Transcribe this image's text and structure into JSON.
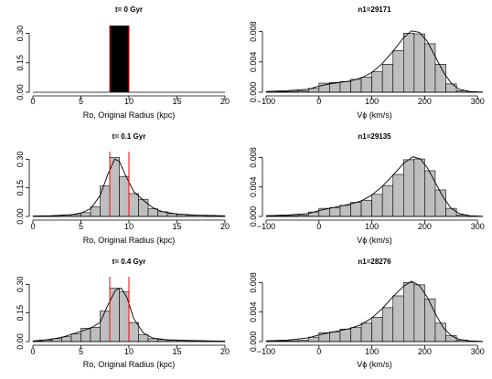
{
  "chart_data": [
    {
      "id": "r0-left",
      "type": "histogram",
      "title": "t= 0 Gyr",
      "xlabel": "Ro, Original Radius (kpc)",
      "ylabel": "",
      "xlim": [
        0,
        20
      ],
      "ylim": [
        0,
        0.34
      ],
      "xticks": [
        0,
        5,
        10,
        15,
        20
      ],
      "yticks": [
        0,
        0.15,
        0.3
      ],
      "xtick_labels": [
        "0",
        "5",
        "10",
        "15",
        "20"
      ],
      "ytick_labels": [
        "0.00",
        "0.15",
        "0.30"
      ],
      "bars": [],
      "solid_block": {
        "x0": 8.0,
        "x1": 10.0,
        "top": 0.34
      },
      "vlines": [
        8,
        10
      ],
      "curve": [],
      "colors": {
        "bar": "#bebebe",
        "vline": "#ff0000",
        "block": "#000000"
      }
    },
    {
      "id": "r0-right",
      "type": "histogram",
      "title": "n1=29171",
      "xlabel": "Vϕ (km/s)",
      "ylabel": "",
      "xlim": [
        -100,
        310
      ],
      "ylim": [
        0,
        0.0088
      ],
      "xticks": [
        -100,
        0,
        100,
        200,
        300
      ],
      "yticks": [
        0,
        0.004,
        0.008
      ],
      "xtick_labels": [
        "−100",
        "0",
        "100",
        "200",
        "300"
      ],
      "ytick_labels": [
        "0.000",
        "0.004",
        "0.008"
      ],
      "bars": [
        {
          "x0": -100,
          "x1": -80,
          "y": 5e-05
        },
        {
          "x0": -80,
          "x1": -60,
          "y": 8e-05
        },
        {
          "x0": -60,
          "x1": -40,
          "y": 0.00012
        },
        {
          "x0": -40,
          "x1": -20,
          "y": 0.0002
        },
        {
          "x0": -20,
          "x1": 0,
          "y": 0.0005
        },
        {
          "x0": 0,
          "x1": 20,
          "y": 0.0012
        },
        {
          "x0": 20,
          "x1": 40,
          "y": 0.0013
        },
        {
          "x0": 40,
          "x1": 60,
          "y": 0.0014
        },
        {
          "x0": 60,
          "x1": 80,
          "y": 0.0017
        },
        {
          "x0": 80,
          "x1": 100,
          "y": 0.002
        },
        {
          "x0": 100,
          "x1": 120,
          "y": 0.0027
        },
        {
          "x0": 120,
          "x1": 140,
          "y": 0.0037
        },
        {
          "x0": 140,
          "x1": 160,
          "y": 0.0055
        },
        {
          "x0": 160,
          "x1": 180,
          "y": 0.0078
        },
        {
          "x0": 180,
          "x1": 200,
          "y": 0.0077
        },
        {
          "x0": 200,
          "x1": 220,
          "y": 0.0064
        },
        {
          "x0": 220,
          "x1": 240,
          "y": 0.0037
        },
        {
          "x0": 240,
          "x1": 260,
          "y": 0.0011
        },
        {
          "x0": 260,
          "x1": 280,
          "y": 0.0002
        },
        {
          "x0": 280,
          "x1": 300,
          "y": 5e-05
        }
      ],
      "vlines": [],
      "curve": [
        [
          -100,
          0.0001
        ],
        [
          -60,
          0.0002
        ],
        [
          -20,
          0.0004
        ],
        [
          0,
          0.0008
        ],
        [
          20,
          0.0011
        ],
        [
          40,
          0.0013
        ],
        [
          60,
          0.0015
        ],
        [
          80,
          0.0019
        ],
        [
          100,
          0.0026
        ],
        [
          120,
          0.0038
        ],
        [
          140,
          0.0054
        ],
        [
          160,
          0.0072
        ],
        [
          175,
          0.0081
        ],
        [
          190,
          0.0079
        ],
        [
          205,
          0.0067
        ],
        [
          220,
          0.0047
        ],
        [
          235,
          0.0027
        ],
        [
          250,
          0.0012
        ],
        [
          265,
          0.0004
        ],
        [
          285,
          0.0001
        ],
        [
          310,
          2e-05
        ]
      ],
      "colors": {
        "bar": "#bebebe",
        "vline": "#ff0000"
      }
    },
    {
      "id": "r1-left",
      "type": "histogram",
      "title": "t= 0.1 Gyr",
      "xlabel": "Ro, Original Radius (kpc)",
      "ylabel": "",
      "xlim": [
        0,
        20
      ],
      "ylim": [
        0,
        0.34
      ],
      "xticks": [
        0,
        5,
        10,
        15,
        20
      ],
      "yticks": [
        0,
        0.15,
        0.3
      ],
      "xtick_labels": [
        "0",
        "5",
        "10",
        "15",
        "20"
      ],
      "ytick_labels": [
        "0.00",
        "0.15",
        "0.30"
      ],
      "bars": [
        {
          "x0": 0,
          "x1": 1,
          "y": 0.002
        },
        {
          "x0": 1,
          "x1": 2,
          "y": 0.003
        },
        {
          "x0": 2,
          "x1": 3,
          "y": 0.005
        },
        {
          "x0": 3,
          "x1": 4,
          "y": 0.008
        },
        {
          "x0": 4,
          "x1": 5,
          "y": 0.01
        },
        {
          "x0": 5,
          "x1": 6,
          "y": 0.02
        },
        {
          "x0": 6,
          "x1": 7,
          "y": 0.05
        },
        {
          "x0": 7,
          "x1": 8,
          "y": 0.16
        },
        {
          "x0": 8,
          "x1": 9,
          "y": 0.31
        },
        {
          "x0": 9,
          "x1": 10,
          "y": 0.21
        },
        {
          "x0": 10,
          "x1": 11,
          "y": 0.12
        },
        {
          "x0": 11,
          "x1": 12,
          "y": 0.09
        },
        {
          "x0": 12,
          "x1": 13,
          "y": 0.04
        },
        {
          "x0": 13,
          "x1": 14,
          "y": 0.025
        },
        {
          "x0": 14,
          "x1": 15,
          "y": 0.015
        },
        {
          "x0": 15,
          "x1": 16,
          "y": 0.01
        },
        {
          "x0": 16,
          "x1": 17,
          "y": 0.007
        },
        {
          "x0": 17,
          "x1": 18,
          "y": 0.006
        },
        {
          "x0": 18,
          "x1": 19,
          "y": 0.005
        },
        {
          "x0": 19,
          "x1": 20,
          "y": 0.003
        }
      ],
      "vlines": [
        8,
        10
      ],
      "curve": [
        [
          0,
          0.002
        ],
        [
          2,
          0.004
        ],
        [
          4,
          0.009
        ],
        [
          5,
          0.018
        ],
        [
          6,
          0.04
        ],
        [
          7,
          0.11
        ],
        [
          7.8,
          0.22
        ],
        [
          8.5,
          0.3
        ],
        [
          9,
          0.29
        ],
        [
          9.6,
          0.22
        ],
        [
          10.5,
          0.13
        ],
        [
          11.5,
          0.085
        ],
        [
          12.5,
          0.045
        ],
        [
          13.5,
          0.025
        ],
        [
          15,
          0.013
        ],
        [
          17,
          0.007
        ],
        [
          20,
          0.003
        ]
      ],
      "colors": {
        "bar": "#bebebe",
        "vline": "#ff0000"
      }
    },
    {
      "id": "r1-right",
      "type": "histogram",
      "title": "n1=29135",
      "xlabel": "Vϕ (km/s)",
      "ylabel": "",
      "xlim": [
        -100,
        310
      ],
      "ylim": [
        0,
        0.0088
      ],
      "xticks": [
        -100,
        0,
        100,
        200,
        300
      ],
      "yticks": [
        0,
        0.004,
        0.008
      ],
      "xtick_labels": [
        "−100",
        "0",
        "100",
        "200",
        "300"
      ],
      "ytick_labels": [
        "0.000",
        "0.004",
        "0.008"
      ],
      "bars": [
        {
          "x0": -100,
          "x1": -80,
          "y": 5e-05
        },
        {
          "x0": -80,
          "x1": -60,
          "y": 8e-05
        },
        {
          "x0": -60,
          "x1": -40,
          "y": 0.00012
        },
        {
          "x0": -40,
          "x1": -20,
          "y": 0.0002
        },
        {
          "x0": -20,
          "x1": 0,
          "y": 0.0006
        },
        {
          "x0": 0,
          "x1": 20,
          "y": 0.0011
        },
        {
          "x0": 20,
          "x1": 40,
          "y": 0.0012
        },
        {
          "x0": 40,
          "x1": 60,
          "y": 0.0015
        },
        {
          "x0": 60,
          "x1": 80,
          "y": 0.0019
        },
        {
          "x0": 80,
          "x1": 100,
          "y": 0.0022
        },
        {
          "x0": 100,
          "x1": 120,
          "y": 0.003
        },
        {
          "x0": 120,
          "x1": 140,
          "y": 0.0042
        },
        {
          "x0": 140,
          "x1": 160,
          "y": 0.0057
        },
        {
          "x0": 160,
          "x1": 180,
          "y": 0.0077
        },
        {
          "x0": 180,
          "x1": 200,
          "y": 0.0078
        },
        {
          "x0": 200,
          "x1": 220,
          "y": 0.0062
        },
        {
          "x0": 220,
          "x1": 240,
          "y": 0.0036
        },
        {
          "x0": 240,
          "x1": 260,
          "y": 0.0011
        },
        {
          "x0": 260,
          "x1": 280,
          "y": 0.0002
        },
        {
          "x0": 280,
          "x1": 300,
          "y": 5e-05
        }
      ],
      "vlines": [],
      "curve": [
        [
          -100,
          0.0001
        ],
        [
          -60,
          0.0002
        ],
        [
          -20,
          0.0004
        ],
        [
          0,
          0.0008
        ],
        [
          20,
          0.0011
        ],
        [
          40,
          0.0014
        ],
        [
          60,
          0.0017
        ],
        [
          80,
          0.0021
        ],
        [
          100,
          0.0029
        ],
        [
          120,
          0.0041
        ],
        [
          140,
          0.0056
        ],
        [
          160,
          0.0072
        ],
        [
          178,
          0.0081
        ],
        [
          192,
          0.0078
        ],
        [
          206,
          0.0065
        ],
        [
          220,
          0.0046
        ],
        [
          235,
          0.0026
        ],
        [
          250,
          0.0011
        ],
        [
          265,
          0.0004
        ],
        [
          285,
          0.0001
        ],
        [
          310,
          2e-05
        ]
      ],
      "colors": {
        "bar": "#bebebe",
        "vline": "#ff0000"
      }
    },
    {
      "id": "r2-left",
      "type": "histogram",
      "title": "t= 0.4 Gyr",
      "xlabel": "Ro, Original Radius (kpc)",
      "ylabel": "",
      "xlim": [
        0,
        20
      ],
      "ylim": [
        0,
        0.34
      ],
      "xticks": [
        0,
        5,
        10,
        15,
        20
      ],
      "yticks": [
        0,
        0.15,
        0.3
      ],
      "xtick_labels": [
        "0",
        "5",
        "10",
        "15",
        "20"
      ],
      "ytick_labels": [
        "0.00",
        "0.15",
        "0.30"
      ],
      "bars": [
        {
          "x0": 0,
          "x1": 1,
          "y": 0.003
        },
        {
          "x0": 1,
          "x1": 2,
          "y": 0.008
        },
        {
          "x0": 2,
          "x1": 3,
          "y": 0.015
        },
        {
          "x0": 3,
          "x1": 4,
          "y": 0.025
        },
        {
          "x0": 4,
          "x1": 5,
          "y": 0.04
        },
        {
          "x0": 5,
          "x1": 6,
          "y": 0.07
        },
        {
          "x0": 6,
          "x1": 7,
          "y": 0.075
        },
        {
          "x0": 7,
          "x1": 8,
          "y": 0.16
        },
        {
          "x0": 8,
          "x1": 9,
          "y": 0.28
        },
        {
          "x0": 9,
          "x1": 10,
          "y": 0.26
        },
        {
          "x0": 10,
          "x1": 11,
          "y": 0.1
        },
        {
          "x0": 11,
          "x1": 12,
          "y": 0.035
        },
        {
          "x0": 12,
          "x1": 13,
          "y": 0.015
        },
        {
          "x0": 13,
          "x1": 14,
          "y": 0.01
        },
        {
          "x0": 14,
          "x1": 15,
          "y": 0.007
        },
        {
          "x0": 15,
          "x1": 16,
          "y": 0.006
        },
        {
          "x0": 16,
          "x1": 17,
          "y": 0.005
        },
        {
          "x0": 17,
          "x1": 18,
          "y": 0.004
        },
        {
          "x0": 18,
          "x1": 19,
          "y": 0.003
        },
        {
          "x0": 19,
          "x1": 20,
          "y": 0.002
        }
      ],
      "vlines": [
        8,
        10
      ],
      "curve": [
        [
          0,
          0.003
        ],
        [
          1.5,
          0.01
        ],
        [
          3,
          0.022
        ],
        [
          4.5,
          0.045
        ],
        [
          6,
          0.07
        ],
        [
          7,
          0.1
        ],
        [
          7.8,
          0.19
        ],
        [
          8.6,
          0.27
        ],
        [
          9.2,
          0.28
        ],
        [
          9.8,
          0.23
        ],
        [
          10.5,
          0.12
        ],
        [
          11.5,
          0.045
        ],
        [
          12.5,
          0.018
        ],
        [
          14,
          0.009
        ],
        [
          16,
          0.006
        ],
        [
          18,
          0.004
        ],
        [
          20,
          0.002
        ]
      ],
      "colors": {
        "bar": "#bebebe",
        "vline": "#ff0000"
      }
    },
    {
      "id": "r2-right",
      "type": "histogram",
      "title": "n1=28276",
      "xlabel": "Vϕ (km/s)",
      "ylabel": "",
      "xlim": [
        -100,
        310
      ],
      "ylim": [
        0,
        0.0088
      ],
      "xticks": [
        -100,
        0,
        100,
        200,
        300
      ],
      "yticks": [
        0,
        0.004,
        0.008
      ],
      "xtick_labels": [
        "−100",
        "0",
        "100",
        "200",
        "300"
      ],
      "ytick_labels": [
        "0.000",
        "0.004",
        "0.008"
      ],
      "bars": [
        {
          "x0": -100,
          "x1": -80,
          "y": 5e-05
        },
        {
          "x0": -80,
          "x1": -60,
          "y": 8e-05
        },
        {
          "x0": -60,
          "x1": -40,
          "y": 0.00012
        },
        {
          "x0": -40,
          "x1": -20,
          "y": 0.0002
        },
        {
          "x0": -20,
          "x1": 0,
          "y": 0.0006
        },
        {
          "x0": 0,
          "x1": 20,
          "y": 0.0012
        },
        {
          "x0": 20,
          "x1": 40,
          "y": 0.0013
        },
        {
          "x0": 40,
          "x1": 60,
          "y": 0.0017
        },
        {
          "x0": 60,
          "x1": 80,
          "y": 0.0019
        },
        {
          "x0": 80,
          "x1": 100,
          "y": 0.0025
        },
        {
          "x0": 100,
          "x1": 120,
          "y": 0.0033
        },
        {
          "x0": 120,
          "x1": 140,
          "y": 0.0046
        },
        {
          "x0": 140,
          "x1": 160,
          "y": 0.0062
        },
        {
          "x0": 160,
          "x1": 180,
          "y": 0.008
        },
        {
          "x0": 180,
          "x1": 200,
          "y": 0.0077
        },
        {
          "x0": 200,
          "x1": 220,
          "y": 0.0058
        },
        {
          "x0": 220,
          "x1": 240,
          "y": 0.0025
        },
        {
          "x0": 240,
          "x1": 260,
          "y": 0.0008
        },
        {
          "x0": 260,
          "x1": 280,
          "y": 0.0002
        },
        {
          "x0": 280,
          "x1": 300,
          "y": 5e-05
        }
      ],
      "vlines": [],
      "curve": [
        [
          -100,
          0.0001
        ],
        [
          -60,
          0.0002
        ],
        [
          -20,
          0.0005
        ],
        [
          0,
          0.0009
        ],
        [
          20,
          0.0012
        ],
        [
          40,
          0.0015
        ],
        [
          60,
          0.0018
        ],
        [
          80,
          0.0023
        ],
        [
          100,
          0.0032
        ],
        [
          120,
          0.0045
        ],
        [
          140,
          0.0061
        ],
        [
          160,
          0.0075
        ],
        [
          175,
          0.0082
        ],
        [
          190,
          0.0076
        ],
        [
          205,
          0.006
        ],
        [
          220,
          0.0038
        ],
        [
          235,
          0.0019
        ],
        [
          250,
          0.0008
        ],
        [
          265,
          0.0003
        ],
        [
          285,
          0.0001
        ],
        [
          310,
          2e-05
        ]
      ],
      "colors": {
        "bar": "#bebebe",
        "vline": "#ff0000"
      }
    }
  ]
}
